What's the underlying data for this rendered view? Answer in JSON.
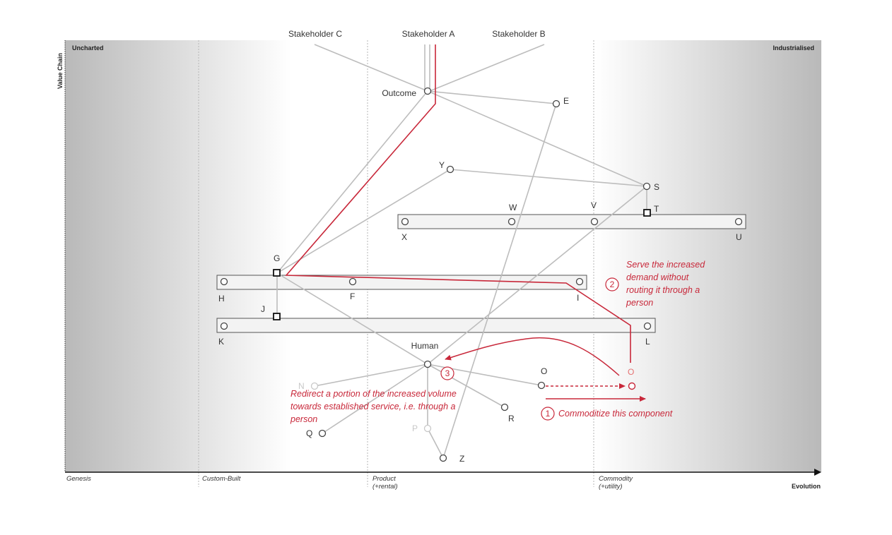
{
  "axes": {
    "y_label": "Value Chain",
    "x_label": "Evolution",
    "top_left": "Uncharted",
    "top_right": "Industrialised"
  },
  "stages": [
    "Genesis",
    "Custom-Built",
    "Product",
    "(+rental)",
    "Commodity",
    "(+utility)"
  ],
  "users": [
    "Stakeholder C",
    "Stakeholder A",
    "Stakeholder B"
  ],
  "components": {
    "outcome": "Outcome",
    "e": "E",
    "y": "Y",
    "s": "S",
    "t": "T",
    "w": "W",
    "v": "V",
    "x": "X",
    "u": "U",
    "g": "G",
    "h": "H",
    "f": "F",
    "i": "I",
    "j": "J",
    "k": "K",
    "l": "L",
    "human": "Human",
    "n": "N",
    "o": "O",
    "o_new": "O",
    "p": "P",
    "q": "Q",
    "r": "R",
    "z": "Z"
  },
  "annotations": {
    "n1": "1",
    "n1_text": "Commoditize this component",
    "n2": "2",
    "n2_line1": "Serve the increased",
    "n2_line2": "demand without",
    "n2_line3": "routing it through a",
    "n2_line4": "person",
    "n3": "3",
    "n3_line1": "Redirect a portion of the increased volume",
    "n3_line2": "towards established service, i.e. through a",
    "n3_line3": "person"
  },
  "colors": {
    "accent": "#c8283a",
    "link": "#bdbdbd",
    "node": "#444444"
  }
}
